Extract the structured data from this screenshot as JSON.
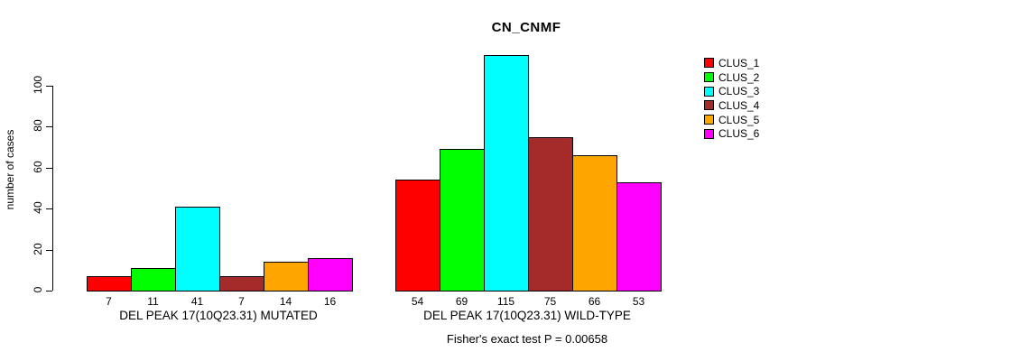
{
  "title": "CN_CNMF",
  "chart_data": {
    "type": "bar",
    "title": "CN_CNMF",
    "xlabel": "",
    "ylabel": "number of cases",
    "ylim": [
      0,
      115
    ],
    "yticks": [
      0,
      20,
      40,
      60,
      80,
      100
    ],
    "grid": false,
    "legend_position": "right",
    "groups": [
      {
        "label": "DEL PEAK 17(10Q23.31) MUTATED",
        "values": [
          7,
          11,
          41,
          7,
          14,
          16
        ]
      },
      {
        "label": "DEL PEAK 17(10Q23.31) WILD-TYPE",
        "values": [
          54,
          69,
          115,
          75,
          66,
          53
        ]
      }
    ],
    "series_colors": [
      "#FF0000",
      "#00FF00",
      "#00FFFF",
      "#A52A2A",
      "#FFA500",
      "#FF00FF"
    ],
    "legend": [
      {
        "label": "CLUS_1",
        "color": "#FF0000"
      },
      {
        "label": "CLUS_2",
        "color": "#00FF00"
      },
      {
        "label": "CLUS_3",
        "color": "#00FFFF"
      },
      {
        "label": "CLUS_4",
        "color": "#A52A2A"
      },
      {
        "label": "CLUS_5",
        "color": "#FFA500"
      },
      {
        "label": "CLUS_6",
        "color": "#FF00FF"
      }
    ],
    "annotation": "Fisher's exact test P = 0.00658"
  }
}
